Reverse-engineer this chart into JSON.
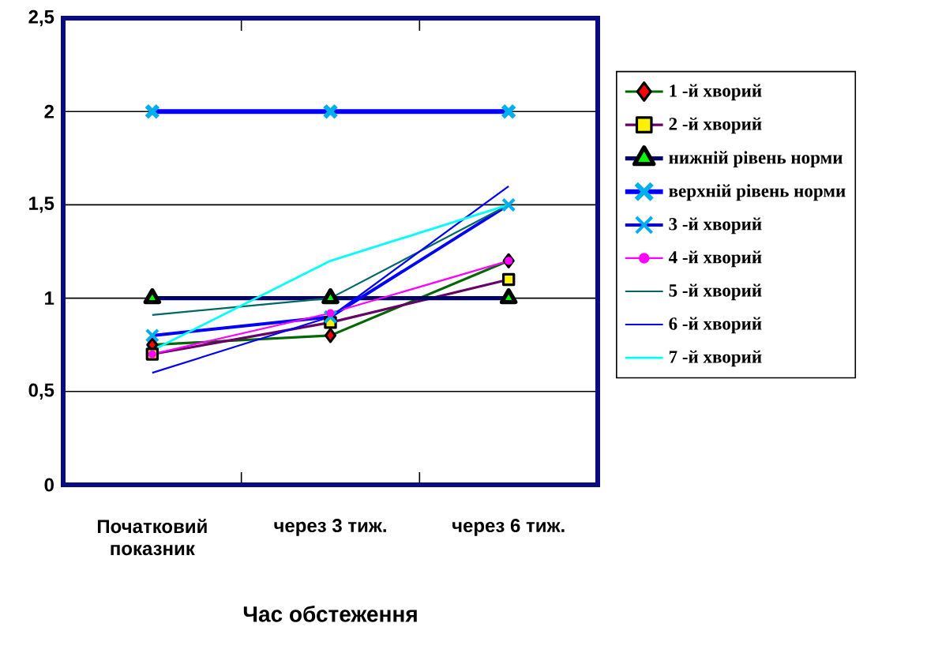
{
  "chart_data": {
    "type": "line",
    "xlabel": "Час обстеження",
    "categories": [
      "Початковий\nпоказник",
      "через 3 тиж.",
      "через 6 тиж."
    ],
    "ylim": [
      0,
      2.5
    ],
    "yticks": [
      0,
      {
        "value": 0.5,
        "label": "0,5"
      },
      1,
      {
        "value": 1.5,
        "label": "1,5"
      },
      2,
      {
        "value": 2.5,
        "label": "2,5"
      }
    ],
    "grid": "y",
    "legend": "right",
    "series": [
      {
        "name": "1  -й хворий",
        "color": "#006600",
        "marker": "diamond",
        "values": [
          0.75,
          0.8,
          1.2
        ]
      },
      {
        "name": "2  -й хворий",
        "color": "#660066",
        "marker": "square",
        "values": [
          0.7,
          0.87,
          1.1
        ]
      },
      {
        "name": "нижній рівень норми",
        "color": "#000066",
        "marker": "triangle",
        "values": [
          1,
          1,
          1
        ]
      },
      {
        "name": "верхній рівень норми",
        "color": "#0000ff",
        "marker": "cross",
        "values": [
          2,
          2,
          2
        ]
      },
      {
        "name": "3   -й хворий",
        "color": "#0000ff",
        "marker": "cross",
        "values": [
          0.8,
          0.9,
          1.5
        ]
      },
      {
        "name": "4   -й хворий",
        "color": "#ff00ff",
        "marker": "circle",
        "values": [
          0.7,
          0.92,
          1.2
        ]
      },
      {
        "name": "5   -й хворий",
        "color": "#006666",
        "marker": "none",
        "values": [
          0.91,
          1,
          1.5
        ]
      },
      {
        "name": "6   -й хворий",
        "color": "#0000ff",
        "marker": "none",
        "values": [
          0.6,
          0.9,
          1.6
        ]
      },
      {
        "name": "7   -й хворий",
        "color": "#00ffff",
        "marker": "none",
        "values": [
          0.72,
          1.2,
          1.5
        ]
      }
    ]
  }
}
